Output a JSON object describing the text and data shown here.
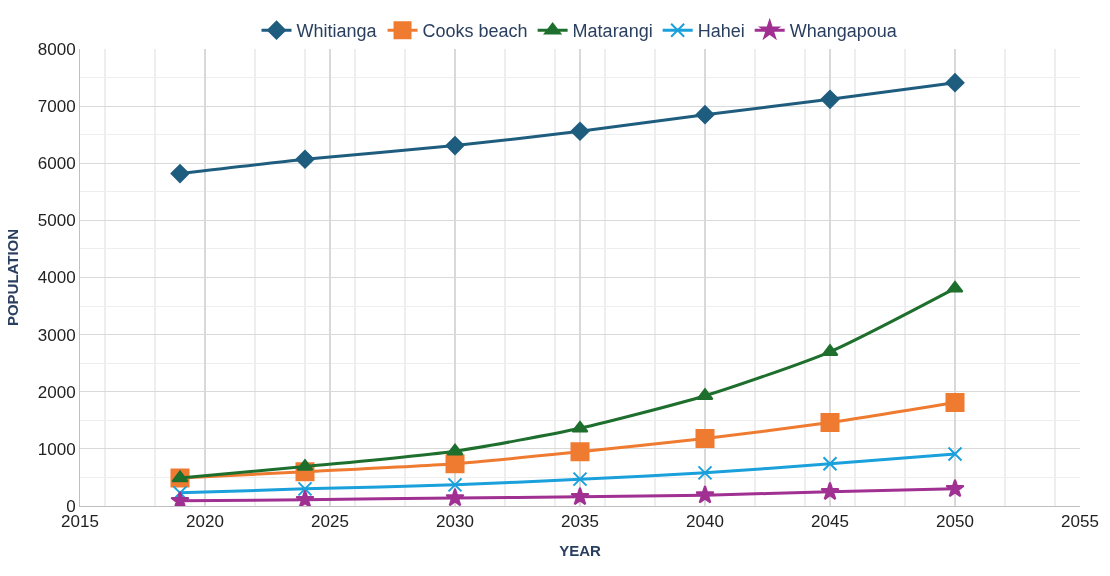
{
  "chart_data": {
    "type": "line",
    "xlabel": "YEAR",
    "ylabel": "POPULATION",
    "x": [
      2019,
      2024,
      2030,
      2035,
      2040,
      2045,
      2050
    ],
    "xlim": [
      2015,
      2055
    ],
    "xticks": [
      2015,
      2020,
      2025,
      2030,
      2035,
      2040,
      2045,
      2050,
      2055
    ],
    "ylim": [
      0,
      8000
    ],
    "yticks": [
      0,
      1000,
      2000,
      3000,
      4000,
      5000,
      6000,
      7000,
      8000
    ],
    "grid": true,
    "legend": "top",
    "line_style": "solid",
    "series": [
      {
        "name": "Whitianga",
        "color": "#1f5d7f",
        "marker": "diamond",
        "values": [
          5820,
          6070,
          6310,
          6560,
          6850,
          7120,
          7410
        ]
      },
      {
        "name": "Cooks beach",
        "color": "#ef7b31",
        "marker": "square",
        "values": [
          490,
          600,
          740,
          950,
          1180,
          1460,
          1810
        ]
      },
      {
        "name": "Matarangi",
        "color": "#1e6f2d",
        "marker": "triangle",
        "values": [
          490,
          690,
          960,
          1360,
          1930,
          2700,
          3810
        ]
      },
      {
        "name": "Hahei",
        "color": "#1aa0db",
        "marker": "cross",
        "values": [
          230,
          300,
          370,
          470,
          580,
          740,
          910
        ]
      },
      {
        "name": "Whangapoua",
        "color": "#a03092",
        "marker": "star",
        "values": [
          90,
          110,
          140,
          160,
          190,
          250,
          300
        ]
      }
    ]
  }
}
